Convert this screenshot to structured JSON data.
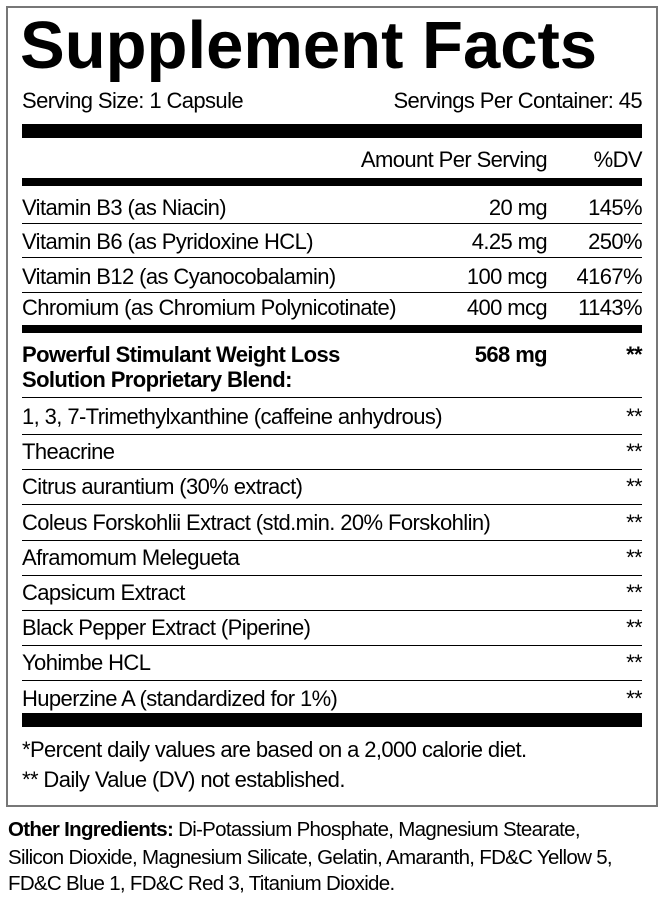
{
  "title": "Supplement Facts",
  "serving_size": "Serving Size: 1 Capsule",
  "servings_per_container": "Servings Per Container: 45",
  "header": {
    "amount": "Amount Per Serving",
    "dv": "%DV"
  },
  "vitamins": [
    {
      "name": "Vitamin B3 (as Niacin)",
      "amount": "20 mg",
      "dv": "145%"
    },
    {
      "name": "Vitamin B6 (as Pyridoxine HCL)",
      "amount": "4.25 mg",
      "dv": "250%"
    },
    {
      "name": "Vitamin B12 (as Cyanocobalamin)",
      "amount": "100 mcg",
      "dv": "4167%"
    },
    {
      "name": "Chromium (as Chromium Polynicotinate)",
      "amount": "400 mcg",
      "dv": "1143%"
    }
  ],
  "blend": {
    "line1": "Powerful Stimulant Weight Loss",
    "line2": "Solution Proprietary Blend:",
    "amount": "568 mg",
    "dv": "**"
  },
  "ingredients": [
    {
      "name": "1, 3, 7-Trimethylxanthine (caffeine anhydrous)",
      "dv": "**"
    },
    {
      "name": "Theacrine",
      "dv": "**"
    },
    {
      "name": "Citrus aurantium (30% extract)",
      "dv": "**"
    },
    {
      "name": "Coleus Forskohlii Extract (std.min. 20% Forskohlin)",
      "dv": "**"
    },
    {
      "name": "Aframomum Melegueta",
      "dv": "**"
    },
    {
      "name": "Capsicum Extract",
      "dv": "**"
    },
    {
      "name": "Black Pepper Extract (Piperine)",
      "dv": "**"
    },
    {
      "name": "Yohimbe HCL",
      "dv": "**"
    },
    {
      "name": "Huperzine A (standardized for 1%)",
      "dv": "**"
    }
  ],
  "footnotes": [
    "*Percent daily values are based on a 2,000 calorie diet.",
    "** Daily Value (DV) not established."
  ],
  "other_ingredients": {
    "label": "Other Ingredients:",
    "lines": [
      " Di-Potassium Phosphate, Magnesium Stearate,",
      "Silicon Dioxide, Magnesium Silicate, Gelatin, Amaranth, FD&C Yellow 5,",
      "FD&C Blue 1, FD&C Red 3, Titanium Dioxide."
    ]
  }
}
